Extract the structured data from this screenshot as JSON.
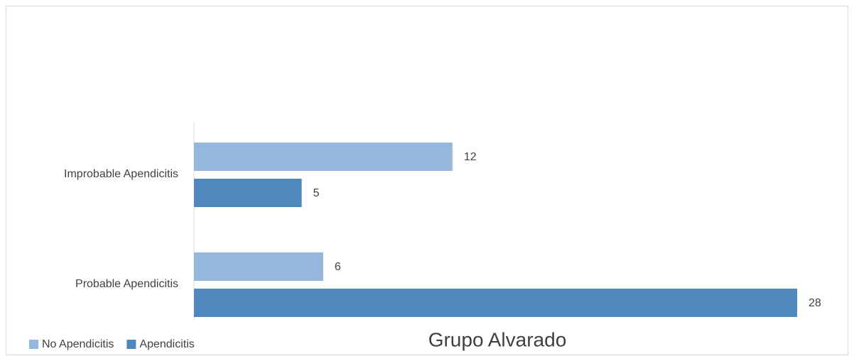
{
  "chart_data": {
    "type": "hbar",
    "title": "Grupo Alvarado",
    "categories": [
      "Improbable Apendicitis",
      "Probable Apendicitis"
    ],
    "series": [
      {
        "name": "No Apendicitis",
        "color": "#95b7de",
        "values": [
          12,
          6
        ]
      },
      {
        "name": "Apendicitis",
        "color": "#4f88bd",
        "values": [
          5,
          28
        ]
      }
    ],
    "xlim": [
      0,
      28
    ],
    "legend": "bottom-left"
  }
}
